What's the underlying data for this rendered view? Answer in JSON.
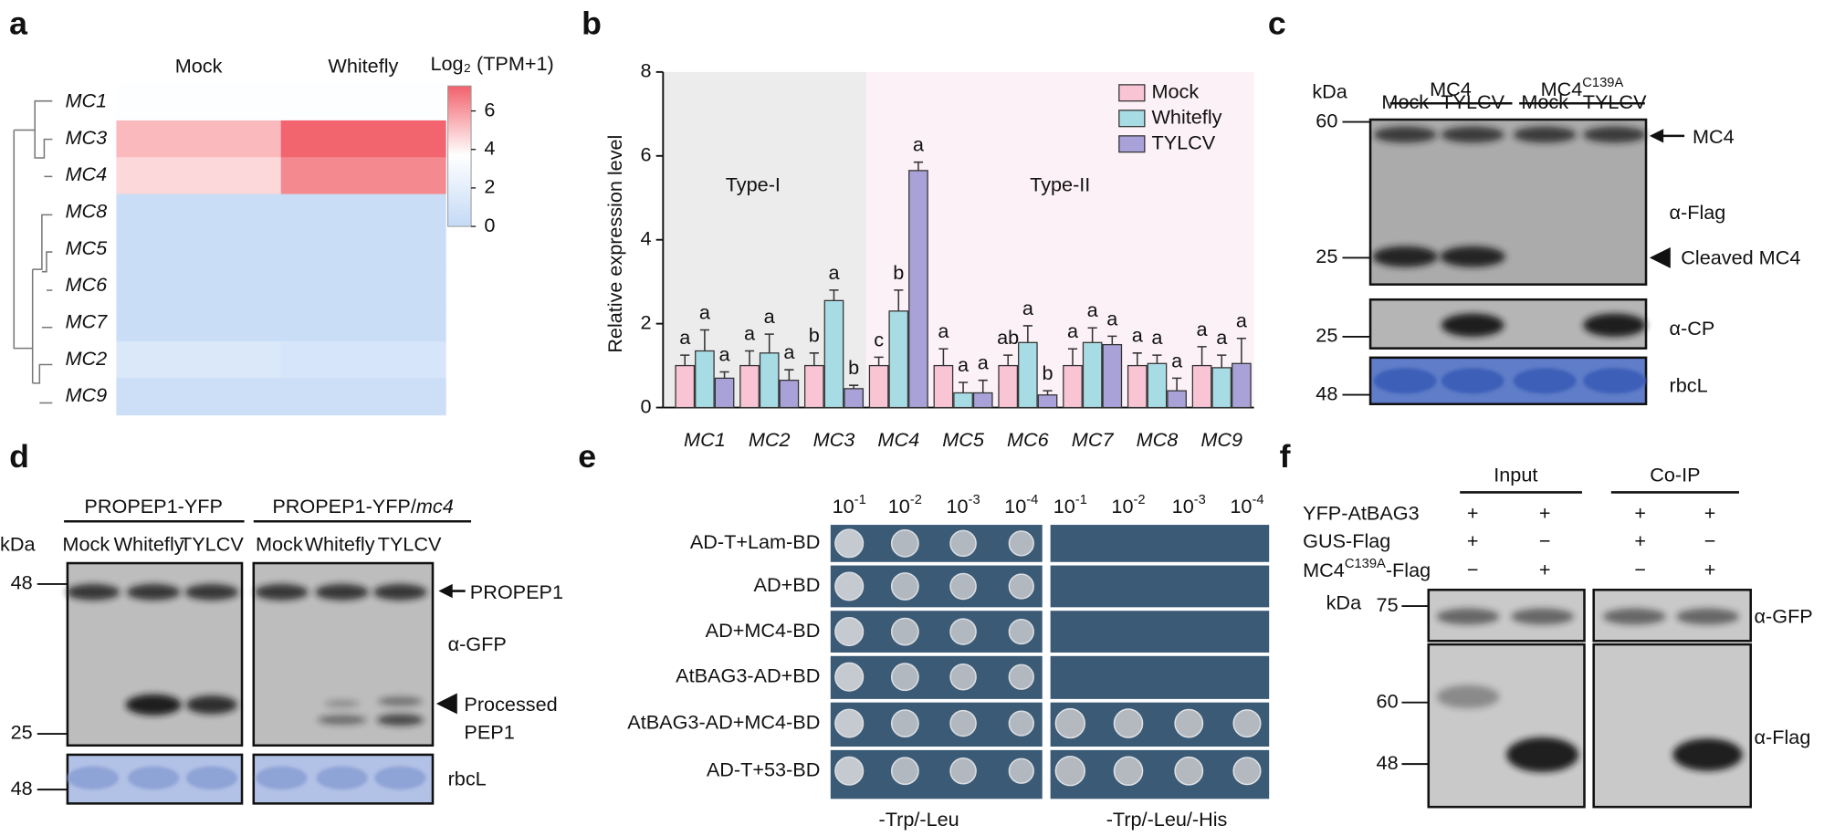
{
  "panel_labels": [
    "a",
    "b",
    "c",
    "d",
    "e",
    "f"
  ],
  "chart_data": [
    {
      "type": "heatmap",
      "columns": [
        "Mock",
        "Whitefly"
      ],
      "rows": [
        "MC1",
        "MC3",
        "MC4",
        "MC8",
        "MC5",
        "MC6",
        "MC7",
        "MC2",
        "MC9"
      ],
      "values": [
        [
          3.6,
          3.6
        ],
        [
          5.3,
          7.2
        ],
        [
          4.6,
          6.4
        ],
        [
          0.3,
          0.3
        ],
        [
          0.3,
          0.3
        ],
        [
          0.3,
          0.3
        ],
        [
          0.3,
          0.3
        ],
        [
          1.4,
          1.1
        ],
        [
          0.5,
          0.5
        ]
      ],
      "colorbar_label": "Log₂ (TPM+1)",
      "clim": [
        0,
        7.3
      ],
      "cticks": [
        0,
        2,
        4,
        6
      ],
      "colormap": [
        {
          "value": 0,
          "color": "#c4daf6"
        },
        {
          "value": 3.7,
          "color": "#ffffff"
        },
        {
          "value": 7.3,
          "color": "#f2616b"
        }
      ]
    },
    {
      "type": "bar",
      "y_label": "Relative expression level",
      "categories": [
        "MC1",
        "MC2",
        "MC3",
        "MC4",
        "MC5",
        "MC6",
        "MC7",
        "MC8",
        "MC9"
      ],
      "series": [
        {
          "name": "Mock",
          "color": "#f9c5d5",
          "values": [
            1.0,
            1.0,
            1.0,
            1.0,
            1.0,
            1.0,
            1.0,
            1.0,
            1.0
          ],
          "errors": [
            0.25,
            0.35,
            0.3,
            0.2,
            0.4,
            0.25,
            0.4,
            0.3,
            0.45
          ],
          "letters": [
            "a",
            "a",
            "b",
            "c",
            "a",
            "ab",
            "a",
            "a",
            "a"
          ]
        },
        {
          "name": "Whitefly",
          "color": "#a8dce5",
          "values": [
            1.35,
            1.3,
            2.55,
            2.3,
            0.35,
            1.55,
            1.55,
            1.05,
            0.95
          ],
          "errors": [
            0.5,
            0.45,
            0.25,
            0.5,
            0.25,
            0.4,
            0.35,
            0.2,
            0.3
          ],
          "letters": [
            "a",
            "a",
            "a",
            "b",
            "a",
            "a",
            "a",
            "a",
            "a"
          ]
        },
        {
          "name": "TYLCV",
          "color": "#a9a2d8",
          "values": [
            0.7,
            0.65,
            0.45,
            5.65,
            0.35,
            0.3,
            1.5,
            0.4,
            1.05
          ],
          "errors": [
            0.15,
            0.25,
            0.08,
            0.2,
            0.3,
            0.1,
            0.2,
            0.3,
            0.6
          ],
          "letters": [
            "a",
            "a",
            "b",
            "a",
            "a",
            "b",
            "a",
            "a",
            "a"
          ]
        }
      ],
      "ylim": [
        0,
        8
      ],
      "yticks": [
        0,
        2,
        4,
        6,
        8
      ],
      "regions": [
        {
          "label": "Type-I",
          "from": "MC1",
          "to": "MC3",
          "color": "#ececec"
        },
        {
          "label": "Type-II",
          "from": "MC4",
          "to": "MC9",
          "color": "#fcf1f6"
        }
      ],
      "highlight": {
        "category": "MC4",
        "color": "#c00000"
      },
      "legend": "upper right"
    }
  ],
  "blot_c": {
    "unit": "kDa",
    "groups": [
      {
        "text": "MC4"
      },
      {
        "text": "MC4",
        "sup": "C139A"
      }
    ],
    "lanes": [
      "Mock",
      "TYLCV",
      "Mock",
      "TYLCV"
    ],
    "markers": [
      60,
      25,
      25,
      48
    ],
    "labels": [
      "MC4",
      "α-Flag",
      "Cleaved MC4",
      "α-CP",
      "rbcL"
    ]
  },
  "blot_d": {
    "unit": "kDa",
    "groups": [
      {
        "text": "PROPEP1-YFP"
      },
      {
        "text": "PROPEP1-YFP/",
        "italic": "mc4"
      }
    ],
    "lanes": [
      "Mock",
      "Whitefly",
      "TYLCV",
      "Mock",
      "Whitefly",
      "TYLCV"
    ],
    "markers": [
      48,
      25,
      48
    ],
    "labels": [
      "PROPEP1",
      "α-GFP",
      [
        "Processed",
        "PEP1"
      ],
      "rbcL"
    ]
  },
  "y2h_e": {
    "dilutions": [
      {
        "text": "10",
        "sup": "-1"
      },
      {
        "text": "10",
        "sup": "-2"
      },
      {
        "text": "10",
        "sup": "-3"
      },
      {
        "text": "10",
        "sup": "-4"
      }
    ],
    "strains": [
      "AD-T+Lam-BD",
      "AD+BD",
      "AD+MC4-BD",
      "AtBAG3-AD+BD",
      "AtBAG3-AD+MC4-BD",
      "AD-T+53-BD"
    ],
    "media": [
      "-Trp/-Leu",
      "-Trp/-Leu/-His"
    ]
  },
  "coip_f": {
    "groups": [
      "Input",
      "Co-IP"
    ],
    "constructs": [
      {
        "text": "YFP-AtBAG3"
      },
      {
        "text": "GUS-Flag"
      },
      {
        "text": "MC4",
        "sup": "C139A",
        "after": "-Flag"
      }
    ],
    "signs": [
      [
        "+",
        "+",
        "+",
        "+"
      ],
      [
        "+",
        "−",
        "+",
        "−"
      ],
      [
        "−",
        "+",
        "−",
        "+"
      ]
    ],
    "unit": "kDa",
    "markers": [
      75,
      60,
      48
    ],
    "labels": [
      "α-GFP",
      "α-Flag"
    ]
  }
}
